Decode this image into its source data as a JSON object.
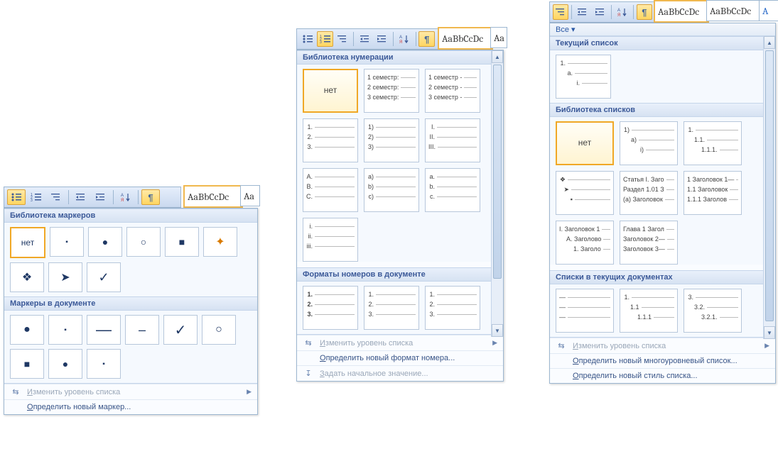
{
  "colors": {
    "accent": "#f0a826",
    "panel_border": "#9db7d1",
    "header_text": "#3b5998",
    "menu_text": "#385487",
    "disabled": "#9aa7b8"
  },
  "ribbon_style": {
    "label": "AaBbCcDc",
    "label2": "Aa"
  },
  "none_label": "нет",
  "bullets": {
    "toolbar_pilcrow": "¶",
    "header_library": "Библиотека маркеров",
    "library": [
      {
        "name": "none",
        "glyph": "нет",
        "selected": true,
        "size": 12
      },
      {
        "name": "dash",
        "glyph": "▪",
        "size": 10
      },
      {
        "name": "disc",
        "glyph": "●",
        "size": 14
      },
      {
        "name": "circle",
        "glyph": "○",
        "size": 14
      },
      {
        "name": "square",
        "glyph": "■",
        "size": 14
      },
      {
        "name": "4color",
        "glyph": "✦",
        "size": 16,
        "color": "#d97a00"
      },
      {
        "name": "4diamond",
        "glyph": "❖",
        "size": 16
      },
      {
        "name": "arrow",
        "glyph": "➤",
        "size": 16
      },
      {
        "name": "check",
        "glyph": "✓",
        "size": 18
      }
    ],
    "header_doc": "Маркеры в документе",
    "doc": [
      {
        "name": "disc",
        "glyph": "●",
        "size": 16
      },
      {
        "name": "dash-s",
        "glyph": "▪",
        "size": 10
      },
      {
        "name": "em-dash",
        "glyph": "—",
        "size": 22
      },
      {
        "name": "en-dash",
        "glyph": "–",
        "size": 18
      },
      {
        "name": "check",
        "glyph": "✓",
        "size": 20
      },
      {
        "name": "circle",
        "glyph": "○",
        "size": 16
      },
      {
        "name": "square",
        "glyph": "■",
        "size": 14
      },
      {
        "name": "disc2",
        "glyph": "●",
        "size": 14
      },
      {
        "name": "dash2",
        "glyph": "▪",
        "size": 10
      }
    ],
    "menu_change_level": "Изменить уровень списка",
    "menu_define_new": "Определить новый маркер..."
  },
  "numbering": {
    "header_library": "Библиотека нумерации",
    "rows": [
      [
        {
          "type": "none",
          "selected": true
        },
        {
          "lines": [
            "1 семестр:",
            "2 семестр:",
            "3 семестр:"
          ]
        },
        {
          "lines": [
            "1 семестр -",
            "2 семестр -",
            "3 семестр -"
          ]
        }
      ],
      [
        {
          "lines": [
            "1.",
            "2.",
            "3."
          ]
        },
        {
          "lines": [
            "1)",
            "2)",
            "3)"
          ]
        },
        {
          "lines": [
            "I.",
            "II.",
            "III."
          ]
        }
      ],
      [
        {
          "lines": [
            "A.",
            "B.",
            "C."
          ]
        },
        {
          "lines": [
            "a)",
            "b)",
            "c)"
          ]
        },
        {
          "lines": [
            "a.",
            "b.",
            "c."
          ]
        }
      ],
      [
        {
          "lines": [
            "i.",
            "ii.",
            "iii."
          ]
        }
      ]
    ],
    "header_doc": "Форматы номеров в документе",
    "doc_row": [
      {
        "lines": [
          "1.",
          "2.",
          "3."
        ],
        "bold": true
      },
      {
        "lines": [
          "1.",
          "2.",
          "3."
        ]
      },
      {
        "lines": [
          "1.",
          "2.",
          "3."
        ]
      }
    ],
    "menu_change_level": "Изменить уровень списка",
    "menu_define_new": "Определить новый формат номера...",
    "menu_set_start": "Задать начальное значение..."
  },
  "multilevel": {
    "header_all": "Все ▾",
    "header_current": "Текущий список",
    "current": {
      "lines": [
        "1.",
        "  a.",
        "    i."
      ]
    },
    "header_library": "Библиотека списков",
    "library_row1": [
      {
        "type": "none",
        "selected": true
      },
      {
        "lines": [
          "1)",
          "  a)",
          "    i)"
        ]
      },
      {
        "lines": [
          "1.",
          "  1.1.",
          "    1.1.1."
        ]
      }
    ],
    "library_row2": [
      {
        "lines": [
          "❖",
          " ➤",
          "  ▪"
        ]
      },
      {
        "lines": [
          "Статья I. Заго",
          "Раздел 1.01 З",
          "(a) Заголовок"
        ]
      },
      {
        "lines": [
          "1 Заголовок 1—",
          "1.1 Заголовок",
          "1.1.1 Заголов"
        ]
      }
    ],
    "library_row3": [
      {
        "lines": [
          "I. Заголовок 1",
          "  A. Заголово",
          "    1. Заголо"
        ]
      },
      {
        "lines": [
          "Глава 1 Загол",
          "Заголовок 2—",
          "Заголовок 3—"
        ]
      }
    ],
    "header_doc": "Списки в текущих документах",
    "doc_row": [
      {
        "lines": [
          "—",
          "—",
          "—"
        ]
      },
      {
        "lines": [
          "1.",
          "  1.1",
          "    1.1.1"
        ]
      },
      {
        "lines": [
          "3.",
          "  3.2.",
          "    3.2.1."
        ]
      }
    ],
    "menu_change_level": "Изменить уровень списка",
    "menu_define_new": "Определить новый многоуровневый список...",
    "menu_define_style": "Определить новый стиль списка..."
  }
}
